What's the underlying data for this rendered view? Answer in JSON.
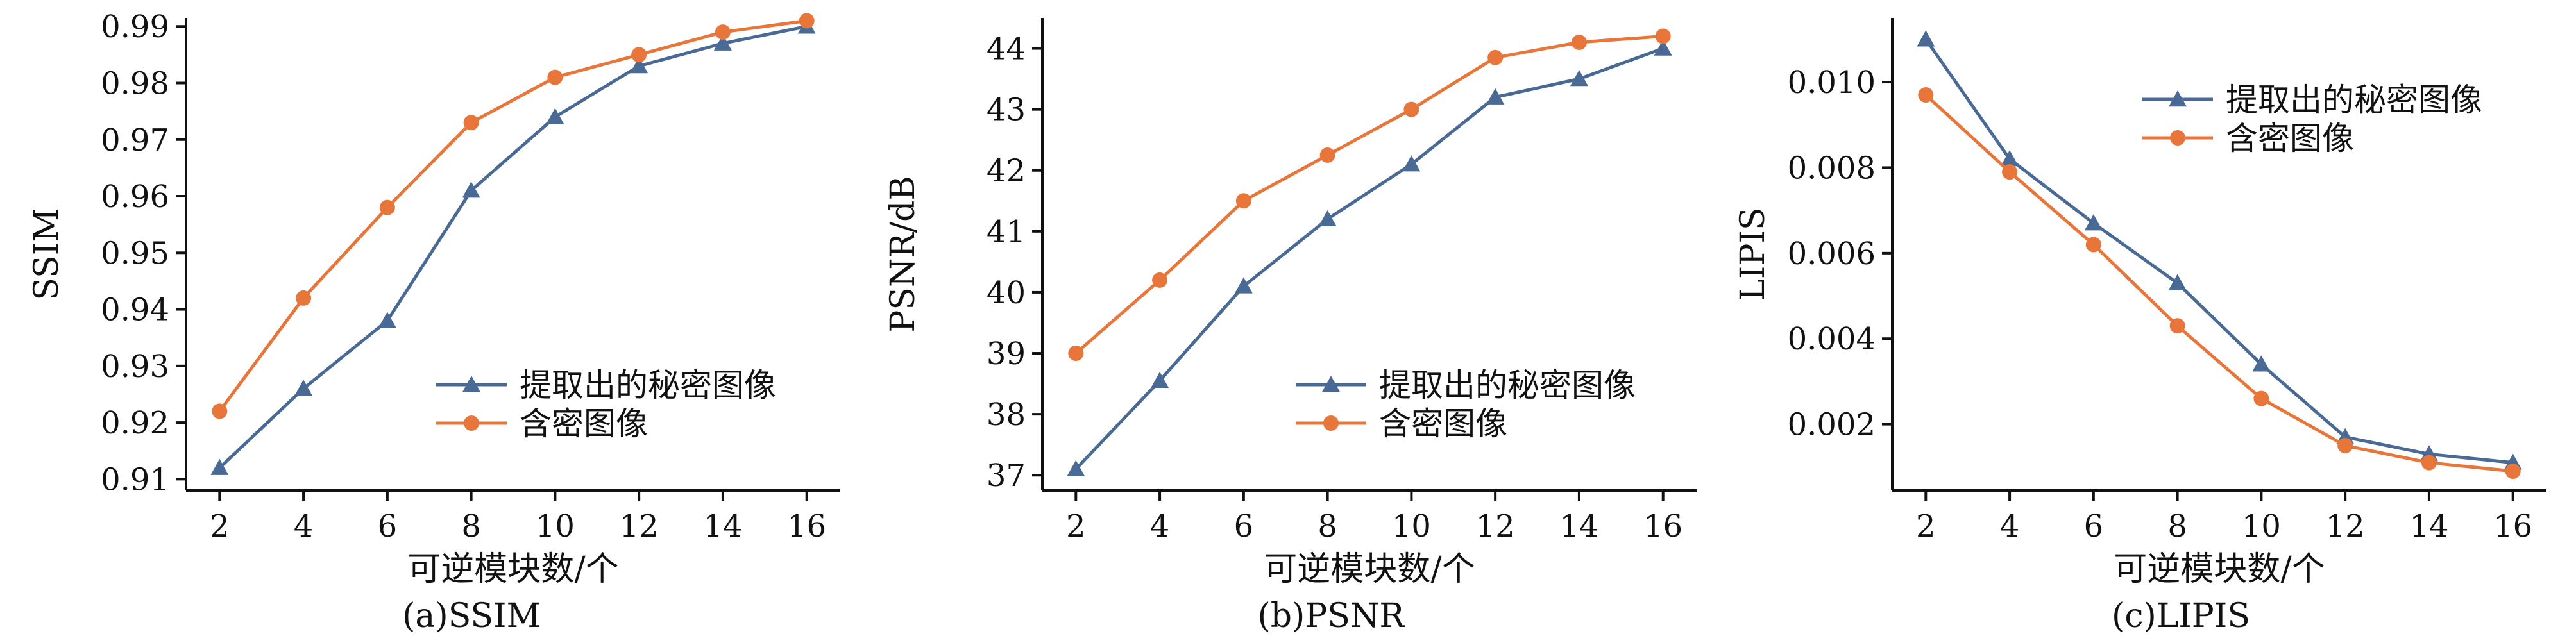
{
  "chart_data": [
    {
      "type": "line",
      "caption": "(a)SSIM",
      "xlabel": "可逆模块数/个",
      "ylabel": "SSIM",
      "categories": [
        2,
        4,
        6,
        8,
        10,
        12,
        14,
        16
      ],
      "xlim": [
        1.2,
        16.8
      ],
      "ylim": [
        0.908,
        0.9915
      ],
      "yticks": [
        "0.91",
        "0.92",
        "0.93",
        "0.94",
        "0.95",
        "0.96",
        "0.97",
        "0.98",
        "0.99"
      ],
      "ytick_values": [
        0.91,
        0.92,
        0.93,
        0.94,
        0.95,
        0.96,
        0.97,
        0.98,
        0.99
      ],
      "legend_position": "lower-right",
      "series": [
        {
          "name": "提取出的秘密图像",
          "marker": "triangle",
          "color": "#4a6a96",
          "values": [
            0.912,
            0.926,
            0.938,
            0.961,
            0.974,
            0.983,
            0.987,
            0.99
          ]
        },
        {
          "name": "含密图像",
          "marker": "circle",
          "color": "#e8763a",
          "values": [
            0.922,
            0.942,
            0.958,
            0.973,
            0.981,
            0.985,
            0.989,
            0.991
          ]
        }
      ]
    },
    {
      "type": "line",
      "caption": "(b)PSNR",
      "xlabel": "可逆模块数/个",
      "ylabel": "PSNR/dB",
      "categories": [
        2,
        4,
        6,
        8,
        10,
        12,
        14,
        16
      ],
      "xlim": [
        1.2,
        16.8
      ],
      "ylim": [
        36.75,
        44.5
      ],
      "yticks": [
        "37",
        "38",
        "39",
        "40",
        "41",
        "42",
        "43",
        "44"
      ],
      "ytick_values": [
        37,
        38,
        39,
        40,
        41,
        42,
        43,
        44
      ],
      "legend_position": "lower-right",
      "series": [
        {
          "name": "提取出的秘密图像",
          "marker": "triangle",
          "color": "#4a6a96",
          "values": [
            37.1,
            38.55,
            40.1,
            41.2,
            42.1,
            43.2,
            43.5,
            44.0
          ]
        },
        {
          "name": "含密图像",
          "marker": "circle",
          "color": "#e8763a",
          "values": [
            39.0,
            40.2,
            41.5,
            42.25,
            43.0,
            43.85,
            44.1,
            44.2
          ]
        }
      ]
    },
    {
      "type": "line",
      "caption": "(c)LIPIS",
      "xlabel": "可逆模块数/个",
      "ylabel": "LIPIS",
      "categories": [
        2,
        4,
        6,
        8,
        10,
        12,
        14,
        16
      ],
      "xlim": [
        1.2,
        16.8
      ],
      "ylim": [
        0.00045,
        0.0115
      ],
      "yticks": [
        "0.002",
        "0.004",
        "0.006",
        "0.008",
        "0.010"
      ],
      "ytick_values": [
        0.002,
        0.004,
        0.006,
        0.008,
        0.01
      ],
      "legend_position": "upper-right",
      "series": [
        {
          "name": "提取出的秘密图像",
          "marker": "triangle",
          "color": "#4a6a96",
          "values": [
            0.011,
            0.0082,
            0.0067,
            0.0053,
            0.0034,
            0.0017,
            0.0013,
            0.0011
          ]
        },
        {
          "name": "含密图像",
          "marker": "circle",
          "color": "#e8763a",
          "values": [
            0.0097,
            0.0079,
            0.0062,
            0.0043,
            0.0026,
            0.0015,
            0.0011,
            0.0009
          ]
        }
      ]
    }
  ]
}
